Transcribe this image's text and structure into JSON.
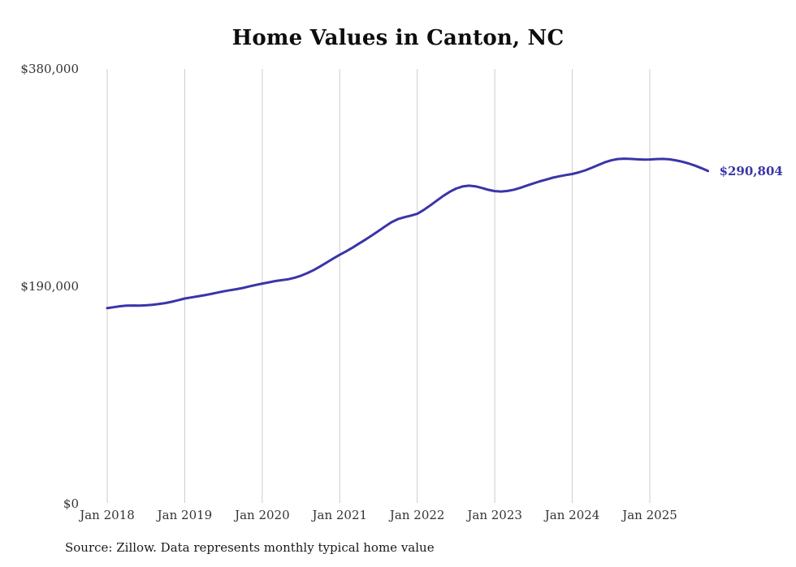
{
  "chart_data": {
    "type": "line",
    "title": "Home Values in Canton, NC",
    "series_name": "Monthly typical home value",
    "x_start": "Jan 2018",
    "x_end": "Oct 2025",
    "frequency": "monthly",
    "x_tick_labels": [
      "Jan 2018",
      "Jan 2019",
      "Jan 2020",
      "Jan 2021",
      "Jan 2022",
      "Jan 2023",
      "Jan 2024",
      "Jan 2025"
    ],
    "y_ticks": [
      0,
      190000,
      380000
    ],
    "y_tick_labels": [
      "$0",
      "$190,000",
      "$380,000"
    ],
    "ylim": [
      0,
      380000
    ],
    "grid": "vertical-only",
    "legend": "none",
    "line_color": "#3a35a8",
    "grid_color": "#cccccc",
    "values": [
      170900,
      171800,
      172600,
      173100,
      173300,
      173200,
      173400,
      173900,
      174600,
      175400,
      176500,
      177900,
      179400,
      180300,
      181200,
      182200,
      183300,
      184500,
      185600,
      186600,
      187500,
      188600,
      189900,
      191200,
      192400,
      193500,
      194600,
      195400,
      196200,
      197500,
      199300,
      201600,
      204300,
      207500,
      210900,
      214300,
      217600,
      220600,
      223900,
      227400,
      230900,
      234600,
      238400,
      242300,
      246000,
      248800,
      250400,
      251800,
      253400,
      256800,
      260700,
      264900,
      268900,
      272500,
      275400,
      277300,
      278000,
      277400,
      276000,
      274400,
      273200,
      272900,
      273400,
      274500,
      276200,
      278100,
      280000,
      281800,
      283400,
      285000,
      286200,
      287300,
      288200,
      289600,
      291400,
      293600,
      296000,
      298300,
      300100,
      301200,
      301600,
      301400,
      301000,
      300800,
      300900,
      301200,
      301400,
      301000,
      300200,
      299000,
      297400,
      295500,
      293300,
      290804
    ],
    "end_label": "$290,804",
    "source": "Source: Zillow. Data represents monthly typical home value"
  }
}
